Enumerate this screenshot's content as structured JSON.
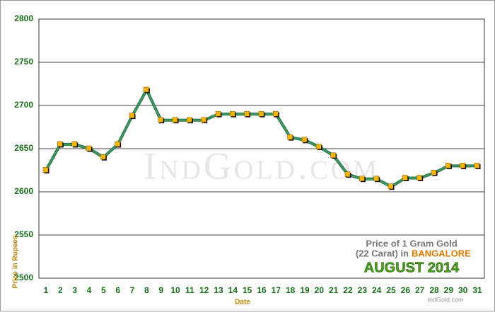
{
  "chart_data": {
    "type": "line",
    "categories": [
      "1",
      "2",
      "3",
      "4",
      "5",
      "6",
      "7",
      "8",
      "9",
      "10",
      "11",
      "12",
      "13",
      "14",
      "15",
      "16",
      "17",
      "18",
      "19",
      "20",
      "21",
      "22",
      "23",
      "24",
      "25",
      "26",
      "27",
      "28",
      "29",
      "30",
      "31"
    ],
    "values": [
      2625,
      2655,
      2655,
      2650,
      2640,
      2655,
      2688,
      2718,
      2683,
      2683,
      2683,
      2683,
      2690,
      2690,
      2690,
      2690,
      2690,
      2663,
      2660,
      2652,
      2642,
      2620,
      2615,
      2615,
      2606,
      2616,
      2616,
      2622,
      2630,
      2630,
      2630
    ],
    "line_color": "#3c9a5f",
    "marker_color": "#f5b400",
    "ylim": [
      2500,
      2800
    ],
    "yticks": [
      2500,
      2550,
      2600,
      2650,
      2700,
      2750,
      2800
    ],
    "grid": true,
    "x_label": "Date",
    "y_label": "Price in Rupees",
    "watermark": "IndGold.com",
    "annotation": {
      "line1": "Price of 1 Gram Gold",
      "line2a": "(22 Carat) in",
      "city": "BANGALORE",
      "period": "AUGUST 2014",
      "source": "IndGold.com"
    }
  }
}
